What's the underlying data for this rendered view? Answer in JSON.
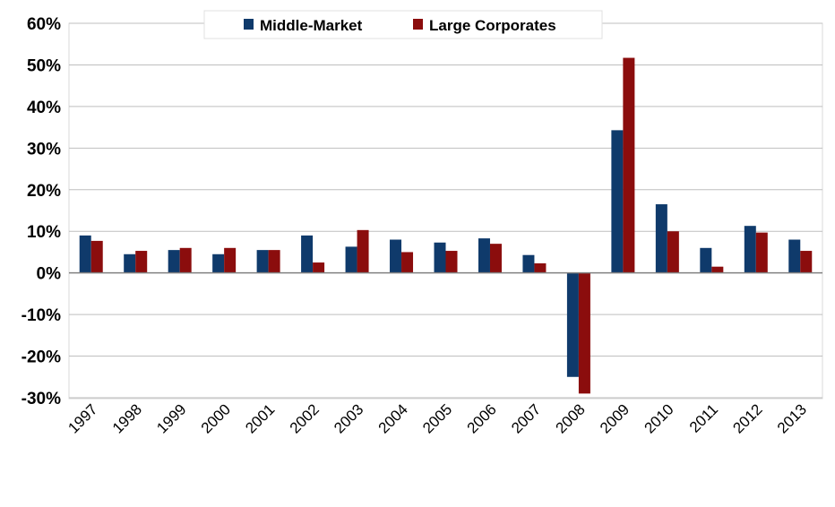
{
  "chart_data": {
    "type": "bar",
    "categories": [
      "1997",
      "1998",
      "1999",
      "2000",
      "2001",
      "2002",
      "2003",
      "2004",
      "2005",
      "2006",
      "2007",
      "2008",
      "2009",
      "2010",
      "2011",
      "2012",
      "2013"
    ],
    "series": [
      {
        "name": "Middle-Market",
        "color": "#0f3a6b",
        "values": [
          9,
          4.5,
          5.5,
          4.5,
          5.5,
          9,
          6.3,
          8,
          7.3,
          8.3,
          4.3,
          -25,
          34.3,
          16.5,
          6,
          11.3,
          8
        ]
      },
      {
        "name": "Large Corporates",
        "color": "#8b0d0d",
        "values": [
          7.7,
          5.3,
          6,
          6,
          5.5,
          2.5,
          10.3,
          5,
          5.3,
          7,
          2.3,
          -29,
          51.7,
          10,
          1.5,
          9.7,
          5.3
        ]
      }
    ],
    "ylim": [
      -30,
      60
    ],
    "yticks": [
      60,
      50,
      40,
      30,
      20,
      10,
      0,
      -10,
      -20,
      -30
    ],
    "ytick_labels": [
      "60%",
      "50%",
      "40%",
      "30%",
      "20%",
      "10%",
      "0%",
      "-10%",
      "-20%",
      "-30%"
    ],
    "grid": true,
    "legend_position": "top"
  }
}
